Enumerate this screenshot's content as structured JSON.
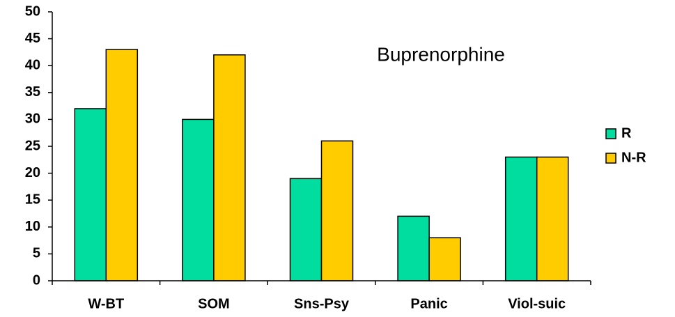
{
  "chart_data": {
    "type": "bar",
    "title": "Buprenorphine",
    "categories": [
      "W-BT",
      "SOM",
      "Sns-Psy",
      "Panic",
      "Viol-suic"
    ],
    "series": [
      {
        "name": "R",
        "color": "#00dd9f",
        "values": [
          32,
          30,
          19,
          12,
          23
        ]
      },
      {
        "name": "N-R",
        "color": "#ffcc00",
        "values": [
          43,
          42,
          26,
          8,
          23
        ]
      }
    ],
    "ylim": [
      0,
      50
    ],
    "yticks": [
      0,
      5,
      10,
      15,
      20,
      25,
      30,
      35,
      40,
      45,
      50
    ],
    "grid": false,
    "legend": "right"
  }
}
